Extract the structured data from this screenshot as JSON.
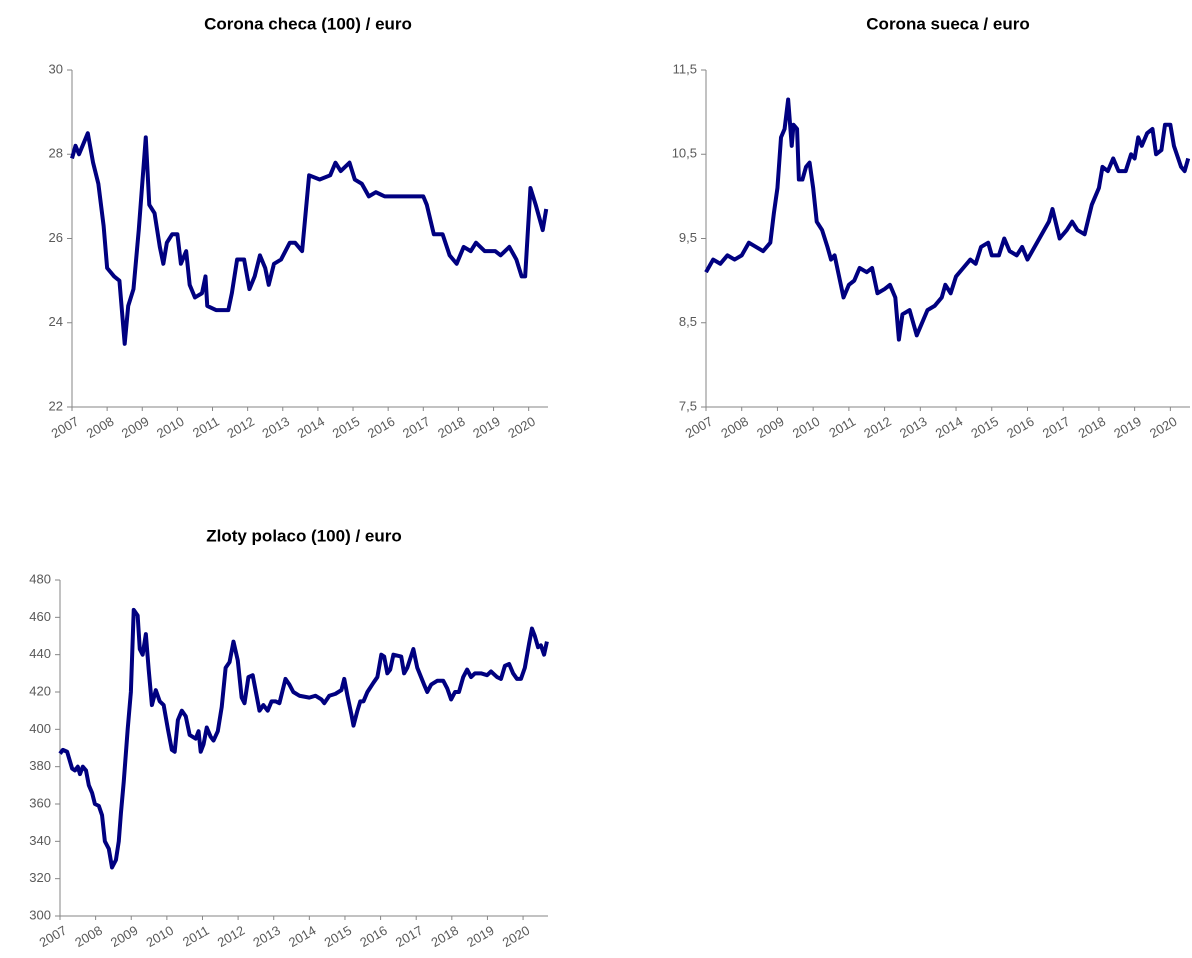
{
  "chart_data": [
    {
      "type": "line",
      "title": "Corona checa (100) / euro",
      "x": [
        2007.0,
        2007.1,
        2007.2,
        2007.45,
        2007.6,
        2007.75,
        2007.9,
        2008.0,
        2008.2,
        2008.35,
        2008.5,
        2008.6,
        2008.75,
        2008.9,
        2009.1,
        2009.2,
        2009.35,
        2009.5,
        2009.6,
        2009.7,
        2009.85,
        2010.0,
        2010.1,
        2010.25,
        2010.35,
        2010.5,
        2010.7,
        2010.8,
        2010.85,
        2011.1,
        2011.45,
        2011.55,
        2011.7,
        2011.9,
        2012.05,
        2012.2,
        2012.35,
        2012.5,
        2012.6,
        2012.75,
        2012.95,
        2013.2,
        2013.35,
        2013.55,
        2013.75,
        2014.05,
        2014.35,
        2014.5,
        2014.65,
        2014.9,
        2015.05,
        2015.25,
        2015.45,
        2015.65,
        2015.9,
        2016.6,
        2017.0,
        2017.1,
        2017.3,
        2017.55,
        2017.75,
        2017.95,
        2018.15,
        2018.35,
        2018.5,
        2018.75,
        2019.05,
        2019.2,
        2019.45,
        2019.65,
        2019.8,
        2019.9,
        2020.05,
        2020.2,
        2020.3,
        2020.4,
        2020.5
      ],
      "series": [
        {
          "color": "#000080",
          "values": [
            27.9,
            28.2,
            28.0,
            28.5,
            27.8,
            27.3,
            26.3,
            25.3,
            25.1,
            25.0,
            23.5,
            24.4,
            24.8,
            26.2,
            28.4,
            26.8,
            26.6,
            25.8,
            25.4,
            25.9,
            26.1,
            26.1,
            25.4,
            25.7,
            24.9,
            24.6,
            24.7,
            25.1,
            24.4,
            24.3,
            24.3,
            24.7,
            25.5,
            25.5,
            24.8,
            25.1,
            25.6,
            25.3,
            24.9,
            25.4,
            25.5,
            25.9,
            25.9,
            25.7,
            27.5,
            27.4,
            27.5,
            27.8,
            27.6,
            27.8,
            27.4,
            27.3,
            27.0,
            27.1,
            27.0,
            27.0,
            27.0,
            26.8,
            26.1,
            26.1,
            25.6,
            25.4,
            25.8,
            25.7,
            25.9,
            25.7,
            25.7,
            25.6,
            25.8,
            25.5,
            25.1,
            25.1,
            27.2,
            26.8,
            26.5,
            26.2,
            26.7
          ]
        }
      ],
      "xlim": [
        2007,
        2020.55
      ],
      "xticks": [
        2007,
        2008,
        2009,
        2010,
        2011,
        2012,
        2013,
        2014,
        2015,
        2016,
        2017,
        2018,
        2019,
        2020
      ],
      "ylim": [
        22,
        30
      ],
      "yticks": [
        22,
        24,
        26,
        28,
        30
      ]
    },
    {
      "type": "line",
      "title": "Corona sueca / euro",
      "x": [
        2007.0,
        2007.2,
        2007.4,
        2007.6,
        2007.8,
        2008.0,
        2008.2,
        2008.4,
        2008.6,
        2008.8,
        2008.9,
        2009.0,
        2009.1,
        2009.2,
        2009.3,
        2009.4,
        2009.45,
        2009.55,
        2009.6,
        2009.7,
        2009.8,
        2009.9,
        2010.0,
        2010.1,
        2010.25,
        2010.4,
        2010.5,
        2010.6,
        2010.75,
        2010.85,
        2011.0,
        2011.15,
        2011.3,
        2011.5,
        2011.65,
        2011.8,
        2012.0,
        2012.15,
        2012.3,
        2012.4,
        2012.5,
        2012.7,
        2012.9,
        2013.0,
        2013.2,
        2013.4,
        2013.6,
        2013.7,
        2013.85,
        2014.0,
        2014.2,
        2014.4,
        2014.55,
        2014.7,
        2014.9,
        2015.0,
        2015.2,
        2015.35,
        2015.5,
        2015.7,
        2015.85,
        2016.0,
        2016.2,
        2016.4,
        2016.6,
        2016.7,
        2016.9,
        2017.1,
        2017.25,
        2017.4,
        2017.6,
        2017.8,
        2018.0,
        2018.1,
        2018.25,
        2018.4,
        2018.55,
        2018.75,
        2018.9,
        2019.0,
        2019.1,
        2019.2,
        2019.35,
        2019.5,
        2019.6,
        2019.75,
        2019.85,
        2020.0,
        2020.1,
        2020.3,
        2020.4,
        2020.5
      ],
      "series": [
        {
          "color": "#000080",
          "values": [
            9.1,
            9.25,
            9.2,
            9.3,
            9.25,
            9.3,
            9.45,
            9.4,
            9.35,
            9.45,
            9.8,
            10.1,
            10.7,
            10.8,
            11.15,
            10.6,
            10.85,
            10.8,
            10.2,
            10.2,
            10.35,
            10.4,
            10.1,
            9.7,
            9.6,
            9.4,
            9.25,
            9.3,
            9.0,
            8.8,
            8.95,
            9.0,
            9.15,
            9.1,
            9.15,
            8.85,
            8.9,
            8.95,
            8.8,
            8.3,
            8.6,
            8.65,
            8.35,
            8.45,
            8.65,
            8.7,
            8.8,
            8.95,
            8.85,
            9.05,
            9.15,
            9.25,
            9.2,
            9.4,
            9.45,
            9.3,
            9.3,
            9.5,
            9.35,
            9.3,
            9.4,
            9.25,
            9.4,
            9.55,
            9.7,
            9.85,
            9.5,
            9.6,
            9.7,
            9.6,
            9.55,
            9.9,
            10.1,
            10.35,
            10.3,
            10.45,
            10.3,
            10.3,
            10.5,
            10.45,
            10.7,
            10.6,
            10.75,
            10.8,
            10.5,
            10.55,
            10.85,
            10.85,
            10.6,
            10.35,
            10.3,
            10.45
          ]
        }
      ],
      "xlim": [
        2007,
        2020.55
      ],
      "xticks": [
        2007,
        2008,
        2009,
        2010,
        2011,
        2012,
        2013,
        2014,
        2015,
        2016,
        2017,
        2018,
        2019,
        2020
      ],
      "ylim": [
        7.5,
        11.5
      ],
      "yticks": [
        {
          "value": 7.5,
          "label": "7,5"
        },
        {
          "value": 8.5,
          "label": "8,5"
        },
        {
          "value": 9.5,
          "label": "9,5"
        },
        {
          "value": 10.5,
          "label": "10,5"
        },
        {
          "value": 11.5,
          "label": "11,5"
        }
      ]
    },
    {
      "type": "line",
      "title": "Zloty polaco (100) / euro",
      "x": [
        2007.0,
        2007.08,
        2007.2,
        2007.34,
        2007.42,
        2007.5,
        2007.56,
        2007.64,
        2007.73,
        2007.81,
        2007.9,
        2007.98,
        2008.09,
        2008.18,
        2008.26,
        2008.37,
        2008.46,
        2008.57,
        2008.65,
        2008.71,
        2008.79,
        2008.9,
        2008.99,
        2009.07,
        2009.18,
        2009.24,
        2009.32,
        2009.41,
        2009.49,
        2009.58,
        2009.69,
        2009.8,
        2009.91,
        2010.03,
        2010.14,
        2010.22,
        2010.31,
        2010.42,
        2010.53,
        2010.64,
        2010.81,
        2010.89,
        2010.95,
        2011.03,
        2011.12,
        2011.23,
        2011.31,
        2011.43,
        2011.54,
        2011.65,
        2011.76,
        2011.87,
        2011.99,
        2012.1,
        2012.18,
        2012.29,
        2012.41,
        2012.52,
        2012.6,
        2012.71,
        2012.83,
        2012.94,
        2013.05,
        2013.16,
        2013.33,
        2013.44,
        2013.55,
        2013.72,
        2014.0,
        2014.17,
        2014.34,
        2014.42,
        2014.56,
        2014.73,
        2014.9,
        2014.98,
        2015.07,
        2015.18,
        2015.24,
        2015.35,
        2015.43,
        2015.52,
        2015.63,
        2015.8,
        2015.91,
        2016.02,
        2016.1,
        2016.19,
        2016.27,
        2016.36,
        2016.58,
        2016.66,
        2016.75,
        2016.92,
        2017.03,
        2017.22,
        2017.31,
        2017.42,
        2017.59,
        2017.76,
        2017.87,
        2017.98,
        2018.09,
        2018.2,
        2018.32,
        2018.43,
        2018.54,
        2018.65,
        2018.82,
        2018.99,
        2019.1,
        2019.27,
        2019.38,
        2019.49,
        2019.61,
        2019.72,
        2019.83,
        2019.94,
        2020.05,
        2020.17,
        2020.25,
        2020.33,
        2020.42,
        2020.5,
        2020.59,
        2020.67
      ],
      "series": [
        {
          "color": "#000080",
          "values": [
            387,
            389,
            388,
            379,
            378,
            380,
            376,
            380,
            378,
            370,
            366,
            360,
            359,
            354,
            340,
            336,
            326,
            330,
            340,
            355,
            372,
            400,
            420,
            464,
            461,
            443,
            440,
            451,
            432,
            413,
            421,
            415,
            413,
            400,
            389,
            388,
            405,
            410,
            407,
            397,
            395,
            399,
            388,
            392,
            401,
            396,
            394,
            399,
            412,
            433,
            436,
            447,
            437,
            417,
            414,
            428,
            429,
            418,
            410,
            413,
            410,
            415,
            415,
            414,
            427,
            424,
            420,
            418,
            417,
            418,
            416,
            414,
            418,
            419,
            421,
            427,
            418,
            408,
            402,
            410,
            415,
            415,
            420,
            425,
            428,
            440,
            439,
            430,
            432,
            440,
            439,
            430,
            433,
            443,
            433,
            424,
            420,
            424,
            426,
            426,
            422,
            416,
            420,
            420,
            428,
            432,
            428,
            430,
            430,
            429,
            431,
            428,
            427,
            434,
            435,
            430,
            427,
            427,
            433,
            446,
            454,
            450,
            444,
            445,
            440,
            447
          ]
        }
      ],
      "xlim": [
        2007,
        2020.7
      ],
      "xticks": [
        2007,
        2008,
        2009,
        2010,
        2011,
        2012,
        2013,
        2014,
        2015,
        2016,
        2017,
        2018,
        2019,
        2020
      ],
      "ylim": [
        300,
        480
      ],
      "yticks": [
        300,
        320,
        340,
        360,
        380,
        400,
        420,
        440,
        460,
        480
      ]
    }
  ]
}
